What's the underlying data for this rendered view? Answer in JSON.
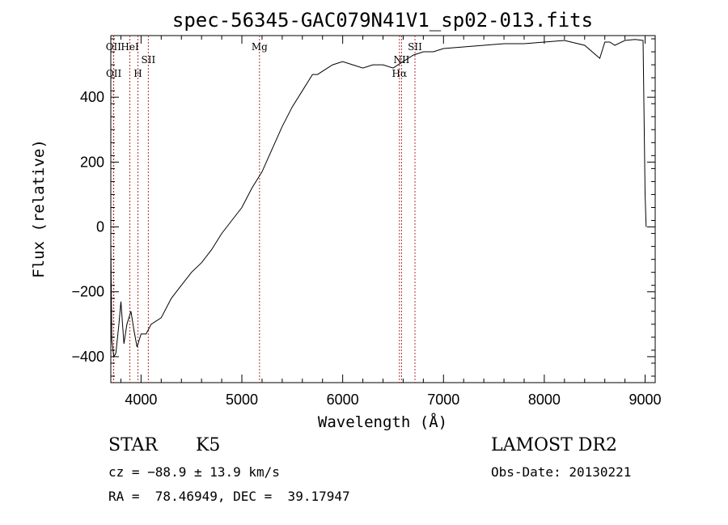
{
  "chart_data": {
    "type": "line",
    "title": "spec-56345-GAC079N41V1_sp02-013.fits",
    "xlabel": "Wavelength (Å)",
    "ylabel": "Flux (relative)",
    "xlim": [
      3700,
      9100
    ],
    "ylim": [
      -480,
      590
    ],
    "x_ticks": [
      4000,
      5000,
      6000,
      7000,
      8000,
      9000
    ],
    "y_ticks": [
      -400,
      -200,
      0,
      200,
      400
    ],
    "grid": false,
    "series": [
      {
        "x": [
          3700,
          3710,
          3730,
          3750,
          3780,
          3800,
          3830,
          3860,
          3900,
          3930,
          3960,
          4000,
          4050,
          4100,
          4200,
          4300,
          4400,
          4500,
          4600,
          4700,
          4800,
          4900,
          5000,
          5100,
          5200,
          5300,
          5400,
          5500,
          5600,
          5700,
          5750,
          5800,
          5900,
          6000,
          6100,
          6200,
          6300,
          6400,
          6500,
          6600,
          6700,
          6800,
          6900,
          7000,
          7200,
          7400,
          7600,
          7800,
          8000,
          8200,
          8400,
          8550,
          8600,
          8650,
          8700,
          8800,
          8900,
          8980,
          9000,
          9010
        ],
        "y": [
          -50,
          -350,
          -400,
          -390,
          -300,
          -230,
          -360,
          -300,
          -260,
          -320,
          -370,
          -330,
          -330,
          -300,
          -280,
          -220,
          -180,
          -140,
          -110,
          -70,
          -20,
          20,
          60,
          120,
          170,
          240,
          310,
          370,
          420,
          470,
          470,
          480,
          500,
          510,
          500,
          490,
          500,
          500,
          490,
          510,
          530,
          540,
          540,
          550,
          555,
          560,
          565,
          565,
          570,
          575,
          560,
          520,
          570,
          570,
          560,
          575,
          578,
          575,
          100,
          0
        ]
      }
    ],
    "line_markers": [
      {
        "label": "OII",
        "x": 3727,
        "row": "top"
      },
      {
        "label": "OII",
        "x": 3729,
        "row": "bottom"
      },
      {
        "label": "HeI",
        "x": 3889,
        "row": "top"
      },
      {
        "label": "H",
        "x": 3969,
        "row": "bottom"
      },
      {
        "label": "SII",
        "x": 4072,
        "row": "middle"
      },
      {
        "label": "Mg",
        "x": 5175,
        "row": "top"
      },
      {
        "label": "NII",
        "x": 6584,
        "row": "middle"
      },
      {
        "label": "Hα",
        "x": 6563,
        "row": "bottom"
      },
      {
        "label": "SII",
        "x": 6717,
        "row": "top"
      }
    ]
  },
  "info": {
    "object_class": "STAR",
    "subclass": "K5",
    "redshift": "cz = −88.9 ± 13.9 km/s",
    "coords": "RA =  78.46949, DEC =  39.17947",
    "survey": "LAMOST DR2",
    "obs_date": "Obs-Date: 20130221"
  }
}
